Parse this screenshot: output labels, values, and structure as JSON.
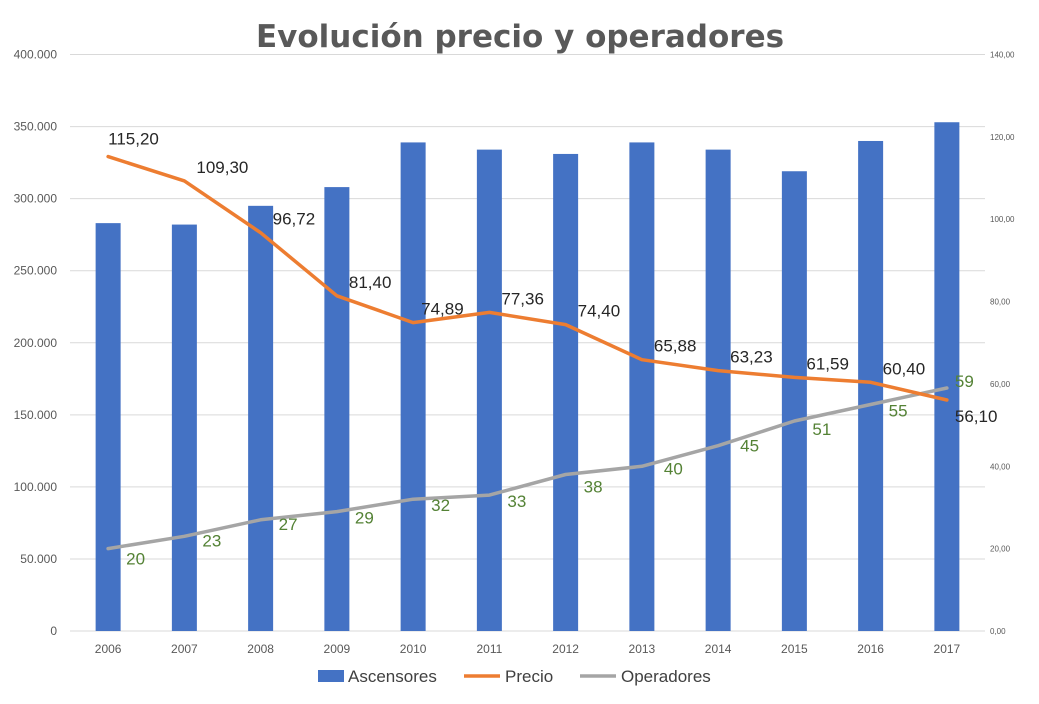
{
  "chart_data": {
    "type": "bar",
    "title": "Evolución precio y operadores",
    "categories": [
      "2006",
      "2007",
      "2008",
      "2009",
      "2010",
      "2011",
      "2012",
      "2013",
      "2014",
      "2015",
      "2016",
      "2017"
    ],
    "series": [
      {
        "name": "Ascensores",
        "type": "bar",
        "axis": "left",
        "color": "#4472C4",
        "values": [
          283000,
          282000,
          295000,
          308000,
          339000,
          334000,
          331000,
          339000,
          334000,
          319000,
          340000,
          353000
        ]
      },
      {
        "name": "Precio",
        "type": "line",
        "axis": "right",
        "color": "#ED7D31",
        "values": [
          115.2,
          109.3,
          96.72,
          81.4,
          74.89,
          77.36,
          74.4,
          65.88,
          63.23,
          61.59,
          60.4,
          56.1
        ],
        "labels": [
          "115,20",
          "109,30",
          "96,72",
          "81,40",
          "74,89",
          "77,36",
          "74,40",
          "65,88",
          "63,23",
          "61,59",
          "60,40",
          "56,10"
        ]
      },
      {
        "name": "Operadores",
        "type": "line",
        "axis": "right",
        "color": "#A5A5A5",
        "label_color": "#548235",
        "values": [
          20,
          23,
          27,
          29,
          32,
          33,
          38,
          40,
          45,
          51,
          55,
          59
        ],
        "labels": [
          "20",
          "23",
          "27",
          "29",
          "32",
          "33",
          "38",
          "40",
          "45",
          "51",
          "55",
          "59"
        ]
      }
    ],
    "y_left": {
      "range": [
        0,
        400000
      ],
      "ticks": [
        0,
        50000,
        100000,
        150000,
        200000,
        250000,
        300000,
        350000,
        400000
      ],
      "tick_labels": [
        "0",
        "50.000",
        "100.000",
        "150.000",
        "200.000",
        "250.000",
        "300.000",
        "350.000",
        "400.000"
      ]
    },
    "y_right": {
      "range": [
        0,
        140
      ],
      "ticks": [
        0,
        20,
        40,
        60,
        80,
        100,
        120,
        140
      ],
      "tick_labels": [
        "0,00",
        "20,00",
        "40,00",
        "60,00",
        "80,00",
        "100,00",
        "120,00",
        "140,00"
      ]
    },
    "grid": true,
    "legend": "bottom"
  }
}
